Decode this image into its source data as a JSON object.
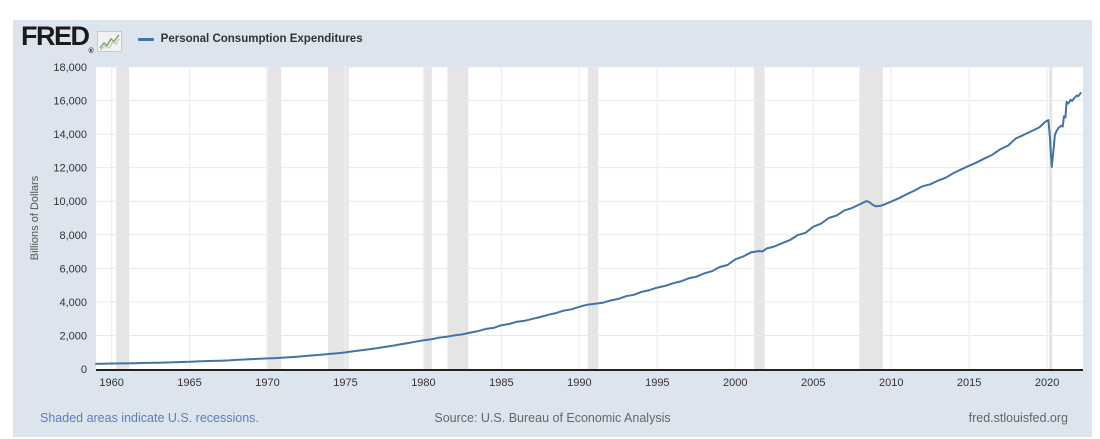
{
  "header": {
    "logo_text": "FRED",
    "registered_mark": "®",
    "logo_icon": "sparkline-chart-icon",
    "legend_label": "Personal Consumption Expenditures"
  },
  "footer": {
    "note": "Shaded areas indicate U.S. recessions.",
    "source": "Source: U.S. Bureau of Economic Analysis",
    "site": "fred.stlouisfed.org"
  },
  "colors": {
    "panel_bg": "#dce5ee",
    "plot_bg": "#ffffff",
    "line": "#4573a7",
    "recession_band": "#e5e5e5",
    "h_gridline": "#e9e9e9",
    "v_gridline": "#f0f0f0",
    "axis": "#222222",
    "tick_text": "#333333",
    "ylabel_text": "#555555",
    "note_text": "#5b7fb4",
    "logo_icon_line": "#8aa871",
    "logo_icon_bg": "#f2f2f2"
  },
  "chart_data": {
    "type": "line",
    "title": "Personal Consumption Expenditures",
    "xlabel": "",
    "ylabel": "Billions of Dollars",
    "xlim": [
      1959,
      2022.3
    ],
    "ylim": [
      0,
      18000
    ],
    "grid": true,
    "legend_position": "top-left header",
    "x_ticks": [
      1960,
      1965,
      1970,
      1975,
      1980,
      1985,
      1990,
      1995,
      2000,
      2005,
      2010,
      2015,
      2020
    ],
    "y_ticks": [
      0,
      2000,
      4000,
      6000,
      8000,
      10000,
      12000,
      14000,
      16000,
      18000
    ],
    "y_tick_labels": [
      "0",
      "2,000",
      "4,000",
      "6,000",
      "8,000",
      "10,000",
      "12,000",
      "14,000",
      "16,000",
      "18,000"
    ],
    "recessions": [
      [
        1960.29,
        1961.13
      ],
      [
        1969.92,
        1970.88
      ],
      [
        1973.88,
        1975.21
      ],
      [
        1980.04,
        1980.54
      ],
      [
        1981.54,
        1982.88
      ],
      [
        1990.54,
        1991.21
      ],
      [
        2001.21,
        2001.88
      ],
      [
        2007.96,
        2009.46
      ],
      [
        2020.13,
        2020.33
      ]
    ],
    "series": [
      {
        "name": "Personal Consumption Expenditures",
        "color": "#4573a7",
        "points": [
          [
            1959.0,
            306
          ],
          [
            1959.25,
            312
          ],
          [
            1959.5,
            318
          ],
          [
            1959.75,
            322
          ],
          [
            1960,
            328
          ],
          [
            1960.25,
            330
          ],
          [
            1960.5,
            332
          ],
          [
            1960.75,
            331
          ],
          [
            1961,
            336
          ],
          [
            1961.25,
            339
          ],
          [
            1961.5,
            346
          ],
          [
            1961.75,
            352
          ],
          [
            1962,
            358
          ],
          [
            1962.25,
            362
          ],
          [
            1962.5,
            366
          ],
          [
            1962.75,
            371
          ],
          [
            1963,
            377
          ],
          [
            1963.25,
            382
          ],
          [
            1963.5,
            388
          ],
          [
            1963.75,
            395
          ],
          [
            1964,
            404
          ],
          [
            1964.25,
            410
          ],
          [
            1964.5,
            416
          ],
          [
            1964.75,
            424
          ],
          [
            1965,
            432
          ],
          [
            1965.25,
            440
          ],
          [
            1965.5,
            450
          ],
          [
            1965.75,
            460
          ],
          [
            1966,
            470
          ],
          [
            1966.5,
            484
          ],
          [
            1967,
            497
          ],
          [
            1967.5,
            514
          ],
          [
            1968,
            540
          ],
          [
            1968.5,
            564
          ],
          [
            1969,
            588
          ],
          [
            1969.5,
            612
          ],
          [
            1970,
            632
          ],
          [
            1970.5,
            650
          ],
          [
            1971,
            678
          ],
          [
            1971.5,
            708
          ],
          [
            1972,
            742
          ],
          [
            1972.5,
            782
          ],
          [
            1973,
            822
          ],
          [
            1973.5,
            860
          ],
          [
            1974,
            900
          ],
          [
            1974.5,
            944
          ],
          [
            1975,
            992
          ],
          [
            1975.5,
            1060
          ],
          [
            1976,
            1120
          ],
          [
            1976.5,
            1180
          ],
          [
            1977,
            1242
          ],
          [
            1977.5,
            1310
          ],
          [
            1978,
            1380
          ],
          [
            1978.5,
            1465
          ],
          [
            1979,
            1545
          ],
          [
            1979.5,
            1630
          ],
          [
            1980,
            1710
          ],
          [
            1980.25,
            1735
          ],
          [
            1980.5,
            1770
          ],
          [
            1980.75,
            1820
          ],
          [
            1981,
            1872
          ],
          [
            1981.5,
            1928
          ],
          [
            1982,
            2002
          ],
          [
            1982.5,
            2060
          ],
          [
            1983,
            2170
          ],
          [
            1983.5,
            2260
          ],
          [
            1984,
            2390
          ],
          [
            1984.5,
            2450
          ],
          [
            1985,
            2610
          ],
          [
            1985.5,
            2680
          ],
          [
            1986,
            2820
          ],
          [
            1986.5,
            2870
          ],
          [
            1987,
            2990
          ],
          [
            1987.5,
            3100
          ],
          [
            1988,
            3230
          ],
          [
            1988.5,
            3330
          ],
          [
            1989,
            3480
          ],
          [
            1989.5,
            3560
          ],
          [
            1990,
            3710
          ],
          [
            1990.5,
            3830
          ],
          [
            1991,
            3890
          ],
          [
            1991.5,
            3950
          ],
          [
            1992,
            4080
          ],
          [
            1992.5,
            4180
          ],
          [
            1993,
            4340
          ],
          [
            1993.5,
            4420
          ],
          [
            1994,
            4600
          ],
          [
            1994.5,
            4700
          ],
          [
            1995,
            4850
          ],
          [
            1995.5,
            4950
          ],
          [
            1996,
            5110
          ],
          [
            1996.5,
            5220
          ],
          [
            1997,
            5400
          ],
          [
            1997.5,
            5500
          ],
          [
            1998,
            5700
          ],
          [
            1998.5,
            5830
          ],
          [
            1999,
            6080
          ],
          [
            1999.5,
            6200
          ],
          [
            2000,
            6540
          ],
          [
            2000.5,
            6700
          ],
          [
            2001,
            6950
          ],
          [
            2001.5,
            7030
          ],
          [
            2001.75,
            7010
          ],
          [
            2002,
            7180
          ],
          [
            2002.5,
            7300
          ],
          [
            2003,
            7500
          ],
          [
            2003.5,
            7680
          ],
          [
            2004,
            7980
          ],
          [
            2004.5,
            8120
          ],
          [
            2005,
            8480
          ],
          [
            2005.5,
            8660
          ],
          [
            2006,
            9000
          ],
          [
            2006.5,
            9150
          ],
          [
            2007,
            9450
          ],
          [
            2007.5,
            9600
          ],
          [
            2008,
            9820
          ],
          [
            2008.4,
            10010
          ],
          [
            2008.6,
            9950
          ],
          [
            2008.8,
            9800
          ],
          [
            2009,
            9700
          ],
          [
            2009.3,
            9720
          ],
          [
            2009.6,
            9820
          ],
          [
            2010,
            9980
          ],
          [
            2010.5,
            10180
          ],
          [
            2011,
            10420
          ],
          [
            2011.5,
            10640
          ],
          [
            2012,
            10890
          ],
          [
            2012.5,
            11010
          ],
          [
            2013,
            11230
          ],
          [
            2013.5,
            11400
          ],
          [
            2014,
            11680
          ],
          [
            2014.5,
            11900
          ],
          [
            2015,
            12120
          ],
          [
            2015.5,
            12320
          ],
          [
            2016,
            12560
          ],
          [
            2016.5,
            12780
          ],
          [
            2017,
            13100
          ],
          [
            2017.5,
            13320
          ],
          [
            2018,
            13750
          ],
          [
            2018.5,
            13950
          ],
          [
            2019,
            14180
          ],
          [
            2019.5,
            14400
          ],
          [
            2019.9,
            14750
          ],
          [
            2020.08,
            14830
          ],
          [
            2020.17,
            13900
          ],
          [
            2020.29,
            12040
          ],
          [
            2020.42,
            13160
          ],
          [
            2020.5,
            13960
          ],
          [
            2020.6,
            14180
          ],
          [
            2020.75,
            14390
          ],
          [
            2020.9,
            14500
          ],
          [
            2021.0,
            14450
          ],
          [
            2021.08,
            15060
          ],
          [
            2021.17,
            15000
          ],
          [
            2021.25,
            15920
          ],
          [
            2021.33,
            15820
          ],
          [
            2021.42,
            15900
          ],
          [
            2021.5,
            16050
          ],
          [
            2021.6,
            15980
          ],
          [
            2021.75,
            16160
          ],
          [
            2021.9,
            16300
          ],
          [
            2022.0,
            16260
          ],
          [
            2022.15,
            16450
          ]
        ]
      }
    ]
  }
}
